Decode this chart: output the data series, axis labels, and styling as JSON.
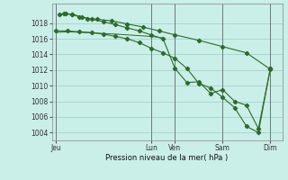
{
  "background_color": "#caeee8",
  "grid_color": "#9dcdc7",
  "line_color": "#2d6b2d",
  "title": "Pression niveau de la mer( hPa )",
  "ylim": [
    1003.0,
    1020.5
  ],
  "yticks": [
    1004,
    1006,
    1008,
    1010,
    1012,
    1014,
    1016,
    1018
  ],
  "day_labels": [
    "Jeu",
    "Lun",
    "Ven",
    "Sam",
    "Dim"
  ],
  "day_positions": [
    0,
    48,
    60,
    84,
    108
  ],
  "xlim": [
    -2,
    114
  ],
  "line_flat_x": [
    0,
    3,
    6,
    10,
    14,
    18,
    22,
    26,
    30,
    36,
    42,
    48,
    54
  ],
  "line_flat_y": [
    1016.8,
    1016.85,
    1016.9,
    1016.85,
    1016.8,
    1016.75,
    1016.7,
    1016.65,
    1016.6,
    1016.5,
    1016.4,
    1016.3,
    1016.1
  ],
  "line_upper_x": [
    2,
    5,
    8,
    12,
    16,
    21,
    28,
    36,
    44,
    52,
    60,
    72,
    84,
    96,
    108
  ],
  "line_upper_y": [
    1019.1,
    1019.2,
    1019.1,
    1018.8,
    1018.6,
    1018.5,
    1018.3,
    1017.9,
    1017.5,
    1017.0,
    1016.5,
    1015.8,
    1015.0,
    1014.2,
    1012.1
  ],
  "line_mid_x": [
    4,
    8,
    13,
    18,
    24,
    30,
    36,
    42,
    48,
    54,
    60,
    66,
    72,
    78,
    84,
    90,
    96,
    102,
    108
  ],
  "line_mid_y": [
    1019.2,
    1019.15,
    1018.8,
    1018.5,
    1018.2,
    1017.8,
    1017.4,
    1017.0,
    1016.5,
    1016.0,
    1012.2,
    1010.4,
    1010.5,
    1009.0,
    1009.5,
    1008.0,
    1007.5,
    1004.5,
    1012.2
  ],
  "line_steep_x": [
    0,
    6,
    12,
    18,
    24,
    30,
    36,
    42,
    48,
    54,
    60,
    66,
    72,
    78,
    84,
    90,
    96,
    102,
    108
  ],
  "line_steep_y": [
    1017.0,
    1017.0,
    1016.9,
    1016.8,
    1016.6,
    1016.3,
    1016.0,
    1015.5,
    1014.8,
    1014.2,
    1013.5,
    1012.2,
    1010.3,
    1009.7,
    1008.5,
    1007.2,
    1004.8,
    1004.0,
    1012.2
  ]
}
